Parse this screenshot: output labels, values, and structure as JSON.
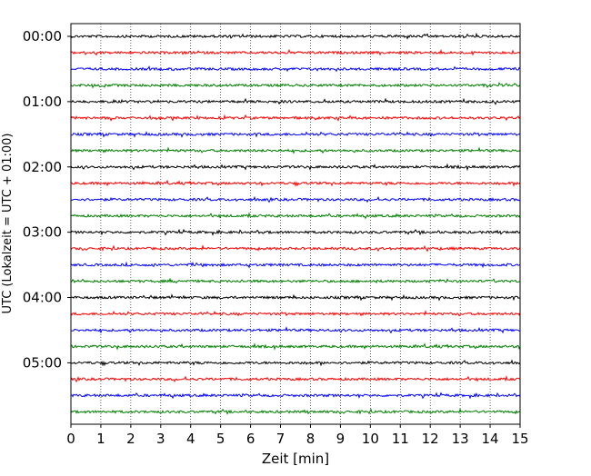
{
  "chart_data": {
    "type": "line",
    "title": "",
    "xlabel": "Zeit  [min]",
    "ylabel": "UTC (Lokalzeit = UTC + 01:00)",
    "xlim": [
      0,
      15
    ],
    "x_ticks": [
      "0",
      "1",
      "2",
      "3",
      "4",
      "5",
      "6",
      "7",
      "8",
      "9",
      "10",
      "11",
      "12",
      "13",
      "14",
      "15"
    ],
    "y_tick_labels": [
      "00:00",
      "01:00",
      "02:00",
      "03:00",
      "04:00",
      "05:00"
    ],
    "grid": "vertical dotted lines at each minute",
    "trace_interval_min": 15,
    "trace_count": 24,
    "color_cycle": [
      "#000000",
      "#ff0000",
      "#0000ff",
      "#008000"
    ],
    "series_description": "24 consecutive 15-minute seismogram traces from 00:00 to 05:45 UTC, low-amplitude noise, colors cycling black/red/blue/green"
  }
}
